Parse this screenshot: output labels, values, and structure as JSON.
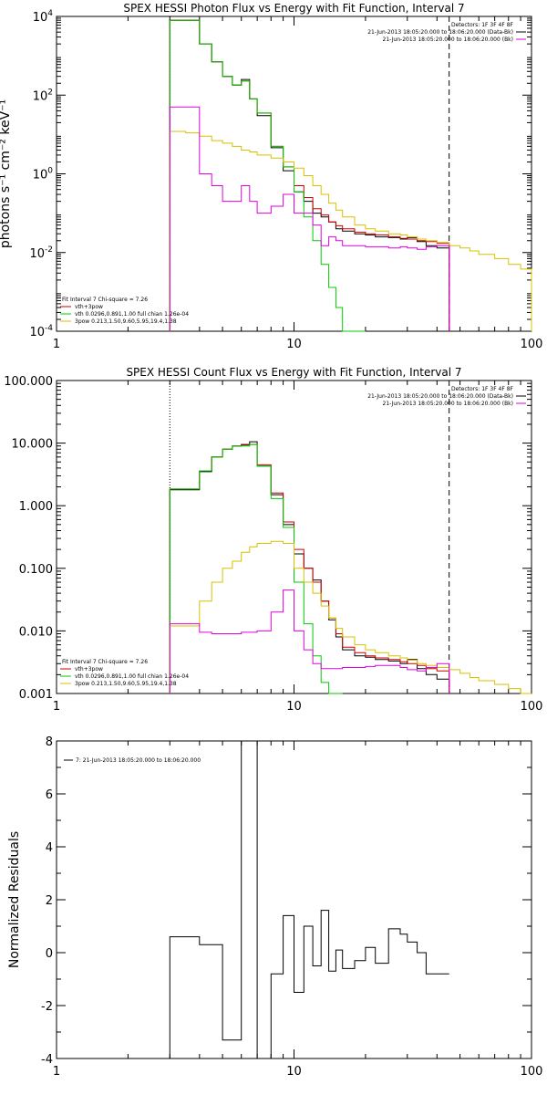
{
  "chart_data": [
    {
      "type": "line",
      "title": "SPEX HESSI Photon Flux vs Energy with Fit Function, Interval 7",
      "ylabel": "photons s⁻¹ cm⁻² keV⁻¹",
      "xscale": "log",
      "yscale": "log",
      "xlim": [
        1,
        100
      ],
      "ylim": [
        0.0001,
        10000
      ],
      "xticks": [
        {
          "v": 1,
          "label": "1"
        },
        {
          "v": 10,
          "label": "10"
        },
        {
          "v": 100,
          "label": "100"
        }
      ],
      "yticks": [
        {
          "v": 10000,
          "base": "10",
          "exp": "4"
        },
        {
          "v": 100,
          "base": "10",
          "exp": "2"
        },
        {
          "v": 1,
          "base": "10",
          "exp": "0"
        },
        {
          "v": 0.01,
          "base": "10",
          "exp": "-2"
        },
        {
          "v": 0.0001,
          "base": "10",
          "exp": "-4"
        }
      ],
      "vlines": [
        {
          "x": 3.0,
          "style": "dotted"
        },
        {
          "x": 45,
          "style": "dashed"
        }
      ],
      "legend_topright": [
        {
          "text": "Detectors: 1F 3F 4F 8F",
          "color": "#000000"
        },
        {
          "text": "21-Jun-2013 18:05:20.000 to 18:06:20.000 (Data-Bk)",
          "color": "#000000"
        },
        {
          "text": "21-Jun-2013 18:05:20.000 to 18:06:20.000 (Bk)",
          "color": "#e000e0"
        }
      ],
      "legend_bottomleft": [
        {
          "text": "Fit Interval  7    Chi-square = 7.26",
          "color": "#000000"
        },
        {
          "text": "vth+3pow",
          "color": "#cc0000"
        },
        {
          "text": "vth 0.0296,0.891,1.00   full chian 1.26e-04",
          "color": "#00cc00"
        },
        {
          "text": "3pow 0.213,1.50,9.60,5.95,19.4,1.38",
          "color": "#d8c000"
        }
      ],
      "series": [
        {
          "name": "Data-Bk",
          "color": "#000000",
          "edges": [
            3,
            3.5,
            4,
            4.5,
            5,
            5.5,
            6,
            6.5,
            7,
            8,
            9,
            10,
            11,
            12,
            13,
            14,
            15,
            16,
            18,
            20,
            22,
            25,
            28,
            30,
            33,
            36,
            40,
            45
          ],
          "values": [
            8000,
            8000,
            2000,
            700,
            300,
            180,
            250,
            80,
            30,
            4.6,
            1.2,
            0.35,
            0.2,
            0.1,
            0.08,
            0.06,
            0.04,
            0.035,
            0.03,
            0.028,
            0.025,
            0.024,
            0.022,
            0.024,
            0.019,
            0.015,
            0.013
          ]
        },
        {
          "name": "vth+3pow",
          "color": "#cc0000",
          "edges": [
            3,
            3.5,
            4,
            4.5,
            5,
            5.5,
            6,
            6.5,
            7,
            8,
            9,
            10,
            11,
            12,
            13,
            14,
            15,
            16,
            18,
            20,
            22,
            25,
            28,
            30,
            33,
            36,
            40,
            45
          ],
          "values": [
            8000,
            8000,
            2000,
            700,
            300,
            180,
            230,
            80,
            35,
            5,
            1.5,
            0.5,
            0.25,
            0.13,
            0.09,
            0.06,
            0.048,
            0.04,
            0.033,
            0.03,
            0.028,
            0.025,
            0.023,
            0.022,
            0.02,
            0.019,
            0.017
          ]
        },
        {
          "name": "vth",
          "color": "#00cc00",
          "edges": [
            3,
            3.5,
            4,
            4.5,
            5,
            5.5,
            6,
            6.5,
            7,
            8,
            9,
            10,
            11,
            12,
            13,
            14,
            15,
            16,
            18,
            20
          ],
          "values": [
            8000,
            8000,
            2000,
            700,
            300,
            180,
            230,
            80,
            35,
            5,
            1.5,
            0.35,
            0.08,
            0.02,
            0.005,
            0.0013,
            0.0004,
            0.0001,
            0.0001
          ]
        },
        {
          "name": "3pow",
          "color": "#d8c000",
          "edges": [
            3,
            3.5,
            4,
            4.5,
            5,
            5.5,
            6,
            6.5,
            7,
            8,
            9,
            10,
            11,
            12,
            13,
            14,
            15,
            16,
            18,
            20,
            22,
            25,
            28,
            30,
            33,
            36,
            40,
            45,
            50,
            55,
            60,
            70,
            80,
            90,
            100
          ],
          "values": [
            12,
            11,
            9,
            7,
            6,
            5,
            4,
            3.6,
            3,
            2.5,
            2,
            1.4,
            0.9,
            0.5,
            0.3,
            0.18,
            0.12,
            0.08,
            0.05,
            0.04,
            0.035,
            0.03,
            0.028,
            0.025,
            0.022,
            0.02,
            0.018,
            0.015,
            0.013,
            0.011,
            0.009,
            0.007,
            0.005,
            0.0038
          ]
        },
        {
          "name": "Bk",
          "color": "#e000e0",
          "edges": [
            3,
            3.5,
            4,
            4.5,
            5,
            5.5,
            6,
            6.5,
            7,
            8,
            9,
            10,
            11,
            12,
            13,
            14,
            15,
            16,
            18,
            20,
            22,
            25,
            28,
            30,
            33,
            36,
            40,
            45
          ],
          "values": [
            50,
            50,
            1,
            0.5,
            0.2,
            0.2,
            0.5,
            0.2,
            0.1,
            0.15,
            0.3,
            0.1,
            0.1,
            0.05,
            0.015,
            0.025,
            0.02,
            0.015,
            0.015,
            0.014,
            0.014,
            0.013,
            0.014,
            0.013,
            0.012,
            0.014,
            0.015
          ]
        }
      ]
    },
    {
      "type": "line",
      "title": "SPEX HESSI Count Flux vs Energy with Fit Function, Interval 7",
      "ylabel": "",
      "xscale": "log",
      "yscale": "log",
      "xlim": [
        1,
        100
      ],
      "ylim": [
        0.001,
        100
      ],
      "xticks": [
        {
          "v": 1,
          "label": "1"
        },
        {
          "v": 10,
          "label": "10"
        },
        {
          "v": 100,
          "label": "100"
        }
      ],
      "yticks": [
        {
          "v": 100,
          "label": "100.000"
        },
        {
          "v": 10,
          "label": "10.000"
        },
        {
          "v": 1,
          "label": "1.000"
        },
        {
          "v": 0.1,
          "label": "0.100"
        },
        {
          "v": 0.01,
          "label": "0.010"
        },
        {
          "v": 0.001,
          "label": "0.001"
        }
      ],
      "vlines": [
        {
          "x": 3.0,
          "style": "dotted"
        },
        {
          "x": 45,
          "style": "dashed"
        }
      ],
      "legend_topright": [
        {
          "text": "Detectors: 1F 3F 4F 8F",
          "color": "#000000"
        },
        {
          "text": "21-Jun-2013 18:05:20.000 to 18:06:20.000 (Data-Bk)",
          "color": "#000000"
        },
        {
          "text": "21-Jun-2013 18:05:20.000 to 18:06:20.000 (Bk)",
          "color": "#e000e0"
        }
      ],
      "legend_bottomleft": [
        {
          "text": "Fit Interval  7    Chi-square = 7.26",
          "color": "#000000"
        },
        {
          "text": "vth+3pow",
          "color": "#cc0000"
        },
        {
          "text": "vth 0.0296,0.891,1.00   full chian 1.26e-04",
          "color": "#00cc00"
        },
        {
          "text": "3pow 0.213,1.50,9.60,5.95,19.4,1.38",
          "color": "#d8c000"
        }
      ],
      "series": [
        {
          "name": "Data-Bk",
          "color": "#000000",
          "edges": [
            3,
            3.5,
            4,
            4.5,
            5,
            5.5,
            6,
            6.5,
            7,
            8,
            9,
            10,
            11,
            12,
            13,
            14,
            15,
            16,
            18,
            20,
            22,
            25,
            28,
            30,
            33,
            36,
            40,
            45
          ],
          "values": [
            1.8,
            1.8,
            3.5,
            6,
            8,
            9,
            9.5,
            10.5,
            4.3,
            1.5,
            0.5,
            0.17,
            0.1,
            0.065,
            0.03,
            0.015,
            0.008,
            0.005,
            0.004,
            0.0038,
            0.0035,
            0.0033,
            0.003,
            0.0035,
            0.0025,
            0.002,
            0.0017
          ]
        },
        {
          "name": "vth+3pow",
          "color": "#cc0000",
          "edges": [
            3,
            3.5,
            4,
            4.5,
            5,
            5.5,
            6,
            6.5,
            7,
            8,
            9,
            10,
            11,
            12,
            13,
            14,
            15,
            16,
            18,
            20,
            22,
            25,
            28,
            30,
            33,
            36,
            40,
            45
          ],
          "values": [
            1.85,
            1.85,
            3.6,
            6,
            8,
            9,
            9.3,
            9.5,
            4.5,
            1.6,
            0.55,
            0.2,
            0.1,
            0.06,
            0.03,
            0.016,
            0.009,
            0.0055,
            0.0045,
            0.004,
            0.0037,
            0.0035,
            0.0032,
            0.003,
            0.0028,
            0.0025,
            0.0023
          ]
        },
        {
          "name": "vth",
          "color": "#00cc00",
          "edges": [
            3,
            3.5,
            4,
            4.5,
            5,
            5.5,
            6,
            6.5,
            7,
            8,
            9,
            10,
            11,
            12,
            13,
            14,
            15,
            16
          ],
          "values": [
            1.85,
            1.85,
            3.6,
            6,
            8,
            9,
            9,
            9.5,
            4.3,
            1.3,
            0.45,
            0.06,
            0.013,
            0.004,
            0.0015,
            0.001,
            0.001
          ]
        },
        {
          "name": "3pow",
          "color": "#d8c000",
          "edges": [
            3,
            3.5,
            4,
            4.5,
            5,
            5.5,
            6,
            6.5,
            7,
            8,
            9,
            10,
            11,
            12,
            13,
            14,
            15,
            16,
            18,
            20,
            22,
            25,
            28,
            30,
            33,
            36,
            40,
            45,
            50,
            55,
            60,
            70,
            80,
            90,
            100
          ],
          "values": [
            0.012,
            0.012,
            0.03,
            0.06,
            0.1,
            0.13,
            0.18,
            0.22,
            0.25,
            0.27,
            0.25,
            0.1,
            0.06,
            0.04,
            0.025,
            0.016,
            0.011,
            0.008,
            0.006,
            0.005,
            0.0045,
            0.004,
            0.0037,
            0.0034,
            0.003,
            0.0028,
            0.0026,
            0.0024,
            0.0021,
            0.0018,
            0.0016,
            0.0014,
            0.0012,
            0.001
          ]
        },
        {
          "name": "Bk",
          "color": "#e000e0",
          "edges": [
            3,
            3.5,
            4,
            4.5,
            5,
            5.5,
            6,
            6.5,
            7,
            8,
            9,
            10,
            11,
            12,
            13,
            14,
            15,
            16,
            18,
            20,
            22,
            25,
            28,
            30,
            33,
            36,
            40,
            45
          ],
          "values": [
            0.013,
            0.013,
            0.0095,
            0.009,
            0.009,
            0.009,
            0.0095,
            0.0095,
            0.01,
            0.02,
            0.045,
            0.01,
            0.005,
            0.003,
            0.0025,
            0.0025,
            0.0025,
            0.0026,
            0.0026,
            0.0027,
            0.0028,
            0.0028,
            0.0026,
            0.0024,
            0.0023,
            0.0026,
            0.003
          ]
        }
      ]
    },
    {
      "type": "line",
      "title": "",
      "ylabel": "Normalized Residuals",
      "xscale": "log",
      "yscale": "linear",
      "xlim": [
        1,
        100
      ],
      "ylim": [
        -4,
        8
      ],
      "xticks": [
        {
          "v": 1,
          "label": "1"
        },
        {
          "v": 10,
          "label": "10"
        },
        {
          "v": 100,
          "label": "100"
        }
      ],
      "yticks": [
        {
          "v": 8,
          "label": "8"
        },
        {
          "v": 6,
          "label": "6"
        },
        {
          "v": 4,
          "label": "4"
        },
        {
          "v": 2,
          "label": "2"
        },
        {
          "v": 0,
          "label": "0"
        },
        {
          "v": -2,
          "label": "-2"
        },
        {
          "v": -4,
          "label": "-4"
        }
      ],
      "vlines": [],
      "legend_topleft": [
        {
          "text": "7: 21-Jun-2013 18:05:20.000 to 18:06:20.000",
          "color": "#000000"
        }
      ],
      "series": [
        {
          "name": "7: 21-Jun-2013 18:05:20.000 to 18:06:20.000",
          "color": "#000000",
          "edges": [
            3,
            3.5,
            4,
            4.5,
            5,
            5.5,
            6,
            6.5,
            7,
            8,
            9,
            10,
            11,
            12,
            13,
            14,
            15,
            16,
            18,
            20,
            22,
            25,
            28,
            30,
            33,
            36,
            40,
            45
          ],
          "values": [
            0.6,
            0.6,
            0.3,
            0.3,
            -3.3,
            -3.3,
            8.0,
            8.0,
            -4.0,
            -0.8,
            1.4,
            -1.5,
            1.0,
            -0.5,
            1.6,
            -0.7,
            0.1,
            -0.6,
            -0.3,
            0.2,
            -0.4,
            0.9,
            0.7,
            0.4,
            0.0,
            -0.8,
            -0.8
          ]
        }
      ]
    }
  ]
}
